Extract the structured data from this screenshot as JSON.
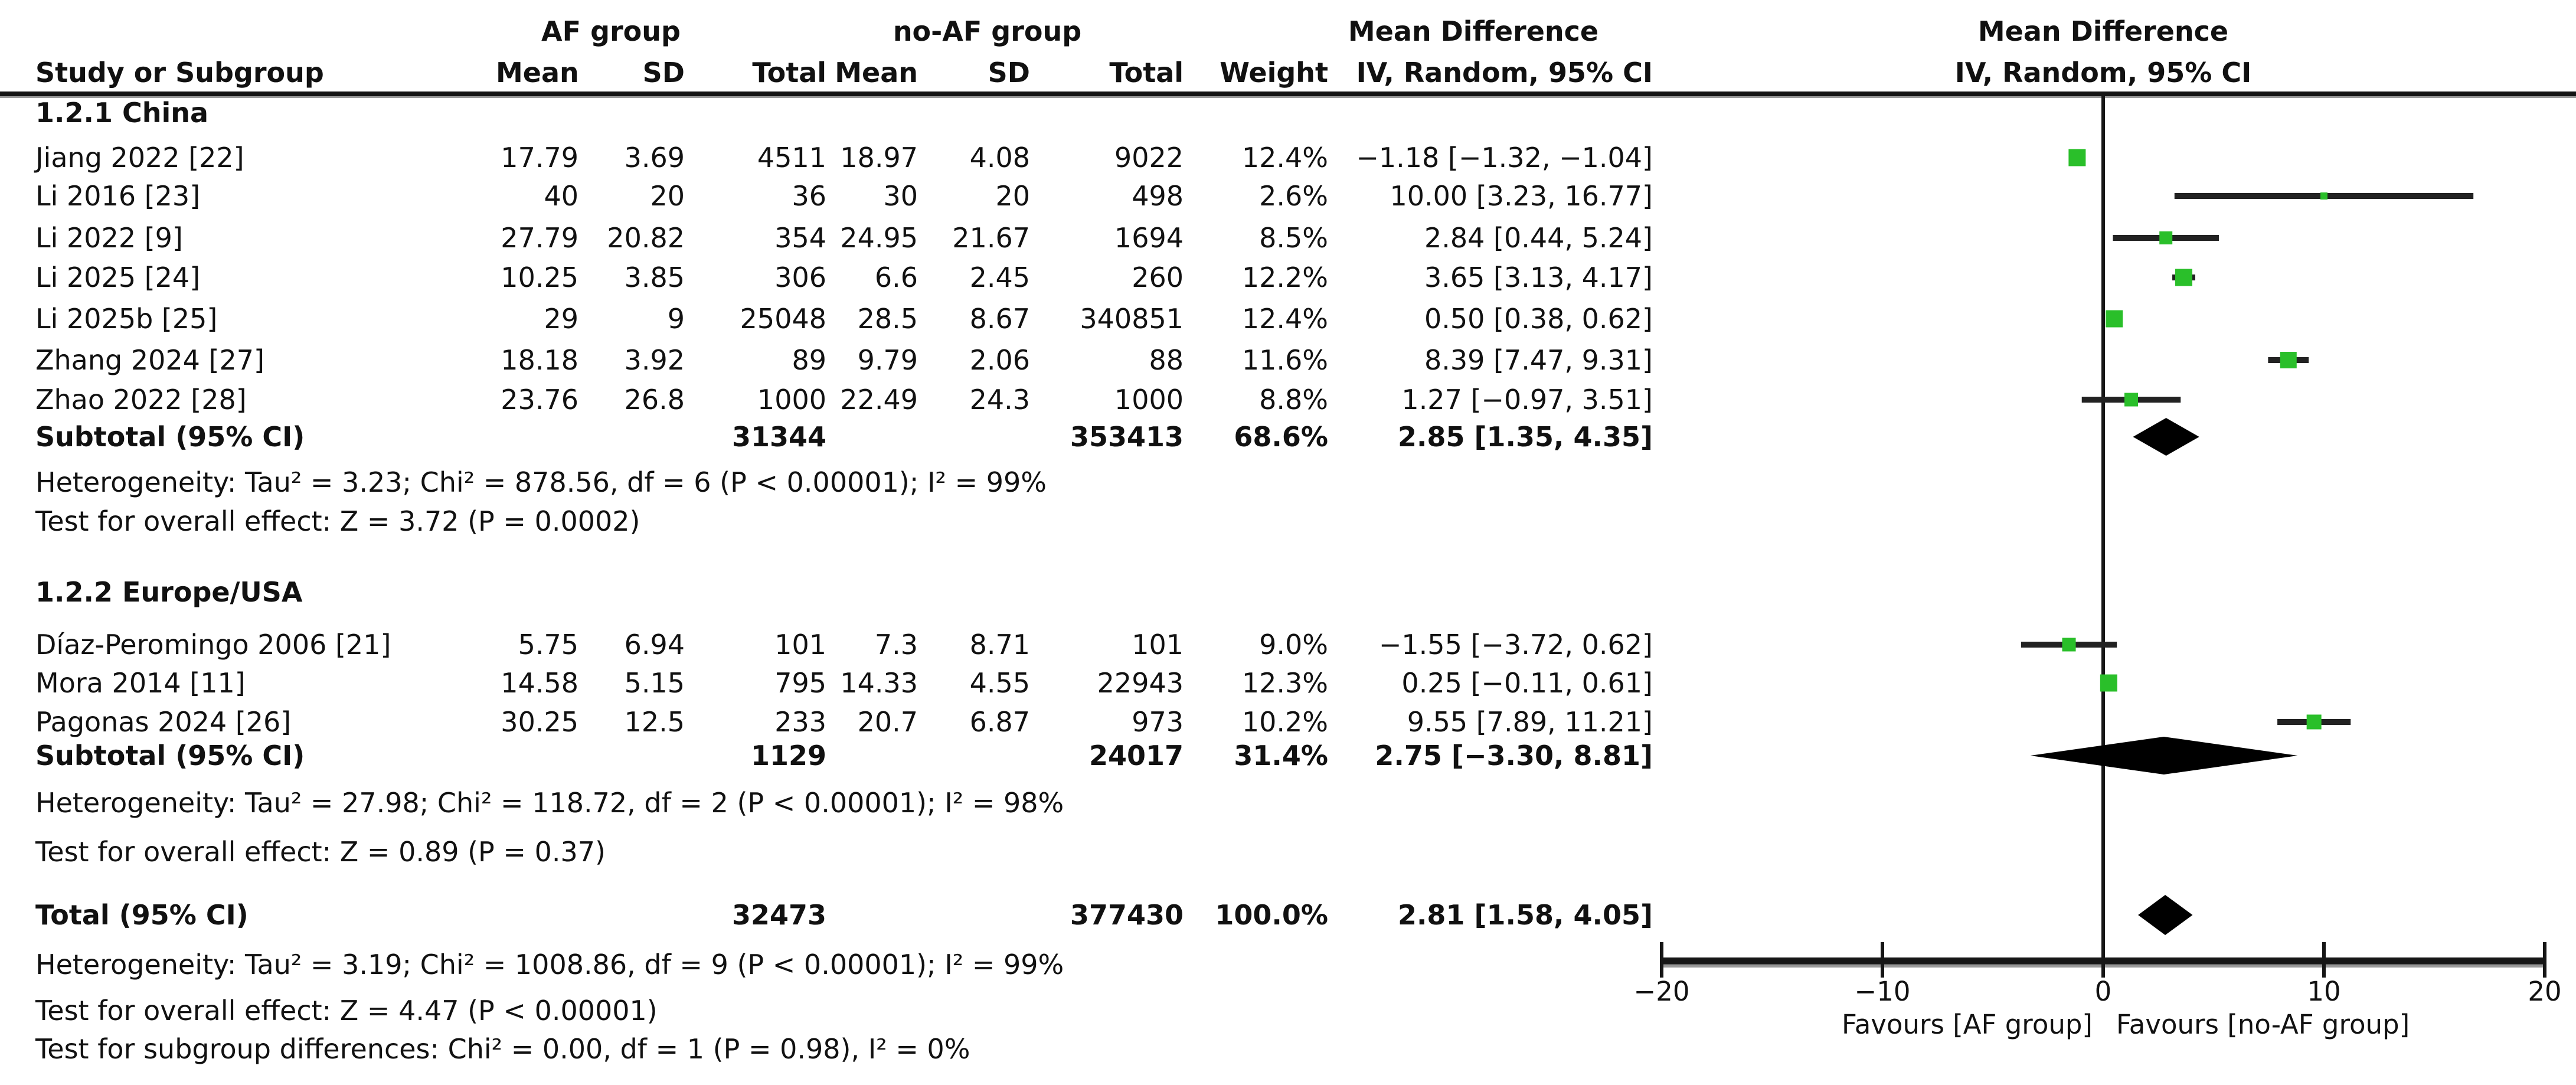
{
  "header": {
    "study_col": "Study or Subgroup",
    "group_af": "AF group",
    "group_noaf": "no-AF group",
    "mean": "Mean",
    "sd": "SD",
    "total": "Total",
    "weight": "Weight",
    "md_title": "Mean Difference",
    "md_method": "IV, Random, 95% CI"
  },
  "sections": [
    {
      "title": "1.2.1 China",
      "rows": [
        {
          "study": "Jiang 2022 [22]",
          "mean1": "17.79",
          "sd1": "3.69",
          "total1": "4511",
          "mean2": "18.97",
          "sd2": "4.08",
          "total2": "9022",
          "weight": "12.4%",
          "ci": "−1.18 [−1.32, −1.04]"
        },
        {
          "study": "Li 2016 [23]",
          "mean1": "40",
          "sd1": "20",
          "total1": "36",
          "mean2": "30",
          "sd2": "20",
          "total2": "498",
          "weight": "2.6%",
          "ci": "10.00 [3.23, 16.77]"
        },
        {
          "study": "Li 2022 [9]",
          "mean1": "27.79",
          "sd1": "20.82",
          "total1": "354",
          "mean2": "24.95",
          "sd2": "21.67",
          "total2": "1694",
          "weight": "8.5%",
          "ci": "2.84 [0.44, 5.24]"
        },
        {
          "study": "Li 2025 [24]",
          "mean1": "10.25",
          "sd1": "3.85",
          "total1": "306",
          "mean2": "6.6",
          "sd2": "2.45",
          "total2": "260",
          "weight": "12.2%",
          "ci": "3.65 [3.13, 4.17]"
        },
        {
          "study": "Li 2025b [25]",
          "mean1": "29",
          "sd1": "9",
          "total1": "25048",
          "mean2": "28.5",
          "sd2": "8.67",
          "total2": "340851",
          "weight": "12.4%",
          "ci": "0.50 [0.38, 0.62]"
        },
        {
          "study": "Zhang 2024 [27]",
          "mean1": "18.18",
          "sd1": "3.92",
          "total1": "89",
          "mean2": "9.79",
          "sd2": "2.06",
          "total2": "88",
          "weight": "11.6%",
          "ci": "8.39 [7.47, 9.31]"
        },
        {
          "study": "Zhao 2022 [28]",
          "mean1": "23.76",
          "sd1": "26.8",
          "total1": "1000",
          "mean2": "22.49",
          "sd2": "24.3",
          "total2": "1000",
          "weight": "8.8%",
          "ci": "1.27 [−0.97, 3.51]"
        }
      ],
      "subtotal": {
        "label": "Subtotal (95% CI)",
        "total1": "31344",
        "total2": "353413",
        "weight": "68.6%",
        "ci": "2.85 [1.35, 4.35]"
      },
      "heterogeneity": "Heterogeneity: Tau² = 3.23; Chi² = 878.56, df = 6 (P < 0.00001); I² = 99%",
      "overall_effect": "Test for overall effect: Z = 3.72 (P = 0.0002)"
    },
    {
      "title": "1.2.2 Europe/USA",
      "rows": [
        {
          "study": "Díaz-Peromingo 2006 [21]",
          "mean1": "5.75",
          "sd1": "6.94",
          "total1": "101",
          "mean2": "7.3",
          "sd2": "8.71",
          "total2": "101",
          "weight": "9.0%",
          "ci": "−1.55 [−3.72, 0.62]"
        },
        {
          "study": "Mora 2014 [11]",
          "mean1": "14.58",
          "sd1": "5.15",
          "total1": "795",
          "mean2": "14.33",
          "sd2": "4.55",
          "total2": "22943",
          "weight": "12.3%",
          "ci": "0.25 [−0.11, 0.61]"
        },
        {
          "study": "Pagonas 2024 [26]",
          "mean1": "30.25",
          "sd1": "12.5",
          "total1": "233",
          "mean2": "20.7",
          "sd2": "6.87",
          "total2": "973",
          "weight": "10.2%",
          "ci": "9.55 [7.89, 11.21]"
        }
      ],
      "subtotal": {
        "label": "Subtotal (95% CI)",
        "total1": "1129",
        "total2": "24017",
        "weight": "31.4%",
        "ci": "2.75 [−3.30, 8.81]"
      },
      "heterogeneity": "Heterogeneity: Tau² = 27.98; Chi² = 118.72, df = 2 (P < 0.00001); I² = 98%",
      "overall_effect": "Test for overall effect: Z = 0.89 (P = 0.37)"
    }
  ],
  "total": {
    "label": "Total (95% CI)",
    "total1": "32473",
    "total2": "377430",
    "weight": "100.0%",
    "ci": "2.81 [1.58, 4.05]"
  },
  "footer": {
    "heterogeneity": "Heterogeneity: Tau² = 3.19; Chi² = 1008.86, df = 9 (P < 0.00001); I² = 99%",
    "overall_effect": "Test for overall effect: Z = 4.47 (P < 0.00001)",
    "subgroup_diff": "Test for subgroup differences: Chi² = 0.00, df = 1 (P = 0.98), I² = 0%"
  },
  "axis": {
    "ticks": [
      "−20",
      "−10",
      "0",
      "10",
      "20"
    ],
    "favours_left": "Favours [AF group]",
    "favours_right": "Favours [no-AF group]"
  },
  "colors": {
    "marker_green": "#2abf2a",
    "line_black": "#161616",
    "ci_line": "#222222",
    "axis_shadow": "#999999"
  },
  "chart_data": {
    "type": "forest",
    "title": "Mean Difference",
    "effect_measure": "IV, Random, 95% CI",
    "xlim": [
      -20,
      20
    ],
    "x_ticks": [
      -20,
      -10,
      0,
      10,
      20
    ],
    "xlabel_left": "Favours [AF group]",
    "xlabel_right": "Favours [no-AF group]",
    "studies": [
      {
        "id": "jiang",
        "label": "Jiang 2022 [22]",
        "md": -1.18,
        "lo": -1.32,
        "hi": -1.04,
        "weight": 12.4
      },
      {
        "id": "li2016",
        "label": "Li 2016 [23]",
        "md": 10.0,
        "lo": 3.23,
        "hi": 16.77,
        "weight": 2.6
      },
      {
        "id": "li2022",
        "label": "Li 2022 [9]",
        "md": 2.84,
        "lo": 0.44,
        "hi": 5.24,
        "weight": 8.5
      },
      {
        "id": "li2025",
        "label": "Li 2025 [24]",
        "md": 3.65,
        "lo": 3.13,
        "hi": 4.17,
        "weight": 12.2
      },
      {
        "id": "li2025b",
        "label": "Li 2025b [25]",
        "md": 0.5,
        "lo": 0.38,
        "hi": 0.62,
        "weight": 12.4
      },
      {
        "id": "zhang",
        "label": "Zhang 2024 [27]",
        "md": 8.39,
        "lo": 7.47,
        "hi": 9.31,
        "weight": 11.6
      },
      {
        "id": "zhao",
        "label": "Zhao 2022 [28]",
        "md": 1.27,
        "lo": -0.97,
        "hi": 3.51,
        "weight": 8.8
      },
      {
        "id": "diaz",
        "label": "Díaz-Peromingo 2006 [21]",
        "md": -1.55,
        "lo": -3.72,
        "hi": 0.62,
        "weight": 9.0
      },
      {
        "id": "mora",
        "label": "Mora 2014 [11]",
        "md": 0.25,
        "lo": -0.11,
        "hi": 0.61,
        "weight": 12.3
      },
      {
        "id": "pagonas",
        "label": "Pagonas 2024 [26]",
        "md": 9.55,
        "lo": 7.89,
        "hi": 11.21,
        "weight": 10.2
      }
    ],
    "subtotals": [
      {
        "id": "sub1",
        "label": "China Subtotal (95% CI)",
        "md": 2.85,
        "lo": 1.35,
        "hi": 4.35,
        "weight": 68.6
      },
      {
        "id": "sub2",
        "label": "Europe/USA Subtotal (95% CI)",
        "md": 2.75,
        "lo": -3.3,
        "hi": 8.81,
        "weight": 31.4
      }
    ],
    "total": {
      "id": "total",
      "label": "Total (95% CI)",
      "md": 2.81,
      "lo": 1.58,
      "hi": 4.05,
      "weight": 100.0
    }
  }
}
